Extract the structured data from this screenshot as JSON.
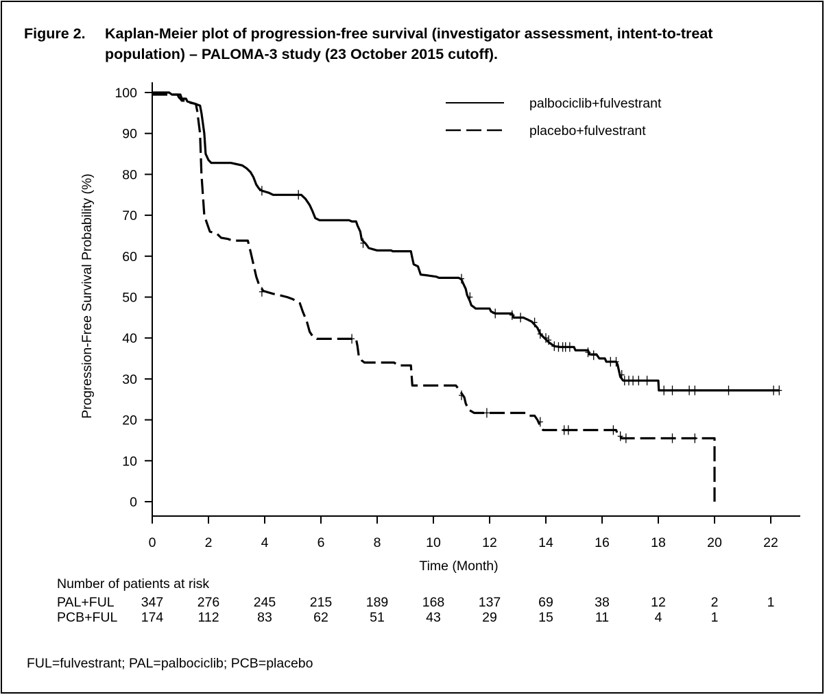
{
  "figure": {
    "label": "Figure 2.",
    "title_line1": "Kaplan-Meier plot of progression-free survival (investigator assessment, intent-to-treat",
    "title_line2": "population) – PALOMA-3 study (23 October 2015 cutoff)."
  },
  "risk_table": {
    "heading": "Number of patients at risk",
    "times": [
      0,
      2,
      4,
      6,
      8,
      10,
      12,
      14,
      16,
      18,
      20,
      22
    ],
    "rows": [
      {
        "label": "PAL+FUL",
        "counts": [
          "347",
          "276",
          "245",
          "215",
          "189",
          "168",
          "137",
          "69",
          "38",
          "12",
          "2",
          "1"
        ]
      },
      {
        "label": "PCB+FUL",
        "counts": [
          "174",
          "112",
          "83",
          "62",
          "51",
          "43",
          "29",
          "15",
          "11",
          "4",
          "1",
          ""
        ]
      }
    ]
  },
  "footnote": "FUL=fulvestrant; PAL=palbociclib; PCB=placebo",
  "chart_data": {
    "type": "line",
    "title": "",
    "xlabel": "Time (Month)",
    "ylabel": "Progression-Free Survival Probability (%)",
    "xlim": [
      0,
      22.5
    ],
    "ylim": [
      0,
      100
    ],
    "xticks": [
      "0",
      "2",
      "4",
      "6",
      "8",
      "10",
      "12",
      "14",
      "16",
      "18",
      "20",
      "22"
    ],
    "yticks": [
      "0",
      "10",
      "20",
      "30",
      "40",
      "50",
      "60",
      "70",
      "80",
      "90",
      "100"
    ],
    "grid": false,
    "legend_position": "top-right",
    "line_color": "#000000",
    "series": [
      {
        "name": "palbociclib+fulvestrant",
        "style": "solid",
        "points": [
          [
            0,
            100
          ],
          [
            0.6,
            100
          ],
          [
            0.7,
            99.5
          ],
          [
            1.0,
            99.5
          ],
          [
            1.05,
            98.5
          ],
          [
            1.2,
            98.5
          ],
          [
            1.25,
            97.8
          ],
          [
            1.5,
            97.3
          ],
          [
            1.7,
            96.8
          ],
          [
            1.75,
            95
          ],
          [
            1.85,
            90
          ],
          [
            1.9,
            85
          ],
          [
            2.0,
            83.5
          ],
          [
            2.1,
            82.8
          ],
          [
            2.8,
            82.8
          ],
          [
            3.0,
            82.5
          ],
          [
            3.2,
            82.2
          ],
          [
            3.35,
            81.5
          ],
          [
            3.5,
            80.5
          ],
          [
            3.6,
            79.3
          ],
          [
            3.7,
            77.5
          ],
          [
            3.8,
            76.5
          ],
          [
            3.9,
            76
          ],
          [
            4.0,
            75.8
          ],
          [
            4.15,
            75.5
          ],
          [
            4.3,
            75
          ],
          [
            5.3,
            75
          ],
          [
            5.45,
            74
          ],
          [
            5.6,
            72.5
          ],
          [
            5.7,
            71
          ],
          [
            5.8,
            69.3
          ],
          [
            5.95,
            68.8
          ],
          [
            7.0,
            68.8
          ],
          [
            7.1,
            68.5
          ],
          [
            7.25,
            68.5
          ],
          [
            7.3,
            67.5
          ],
          [
            7.4,
            66
          ],
          [
            7.45,
            64
          ],
          [
            7.6,
            63
          ],
          [
            7.7,
            62
          ],
          [
            7.85,
            61.7
          ],
          [
            8.0,
            61.4
          ],
          [
            8.5,
            61.4
          ],
          [
            8.55,
            61.2
          ],
          [
            9.2,
            61.2
          ],
          [
            9.25,
            59.5
          ],
          [
            9.3,
            58
          ],
          [
            9.45,
            57.5
          ],
          [
            9.55,
            55.5
          ],
          [
            9.8,
            55.3
          ],
          [
            10.1,
            55
          ],
          [
            10.2,
            54.7
          ],
          [
            10.9,
            54.7
          ],
          [
            11.0,
            54.3
          ],
          [
            11.05,
            53.5
          ],
          [
            11.15,
            52
          ],
          [
            11.2,
            50.5
          ],
          [
            11.3,
            49
          ],
          [
            11.35,
            48
          ],
          [
            11.45,
            47.5
          ],
          [
            11.5,
            47.2
          ],
          [
            12.0,
            47.2
          ],
          [
            12.05,
            46.5
          ],
          [
            12.2,
            46
          ],
          [
            12.8,
            46
          ],
          [
            12.85,
            45
          ],
          [
            13.2,
            45
          ],
          [
            13.35,
            44.5
          ],
          [
            13.5,
            44
          ],
          [
            13.7,
            42.5
          ],
          [
            13.8,
            41
          ],
          [
            13.95,
            40
          ],
          [
            14.1,
            39
          ],
          [
            14.2,
            38.5
          ],
          [
            14.3,
            38
          ],
          [
            14.5,
            37.8
          ],
          [
            15.0,
            37.8
          ],
          [
            15.05,
            37
          ],
          [
            15.5,
            37
          ],
          [
            15.55,
            36
          ],
          [
            15.8,
            36
          ],
          [
            15.9,
            35
          ],
          [
            16.1,
            35
          ],
          [
            16.15,
            34.2
          ],
          [
            16.5,
            34.2
          ],
          [
            16.55,
            33.5
          ],
          [
            16.6,
            32
          ],
          [
            16.65,
            30.5
          ],
          [
            16.75,
            29.6
          ],
          [
            18.0,
            29.6
          ],
          [
            18.02,
            27.2
          ],
          [
            22.3,
            27.2
          ]
        ],
        "censored": [
          [
            3.9,
            76
          ],
          [
            5.2,
            75
          ],
          [
            7.5,
            63.2
          ],
          [
            11.0,
            54.5
          ],
          [
            11.3,
            50
          ],
          [
            12.2,
            46
          ],
          [
            12.8,
            45.6
          ],
          [
            13.1,
            45
          ],
          [
            13.6,
            43.8
          ],
          [
            13.8,
            41
          ],
          [
            14.0,
            40
          ],
          [
            14.1,
            39.5
          ],
          [
            14.3,
            38
          ],
          [
            14.45,
            37.8
          ],
          [
            14.6,
            37.8
          ],
          [
            14.7,
            37.8
          ],
          [
            14.85,
            37.8
          ],
          [
            15.5,
            36.5
          ],
          [
            15.7,
            35.8
          ],
          [
            16.3,
            34.2
          ],
          [
            16.5,
            34.2
          ],
          [
            16.7,
            31
          ],
          [
            16.8,
            29.6
          ],
          [
            16.95,
            29.6
          ],
          [
            17.1,
            29.6
          ],
          [
            17.3,
            29.6
          ],
          [
            17.6,
            29.6
          ],
          [
            18.2,
            27.2
          ],
          [
            18.5,
            27.2
          ],
          [
            19.1,
            27.2
          ],
          [
            19.3,
            27.2
          ],
          [
            20.5,
            27.2
          ],
          [
            22.1,
            27.2
          ],
          [
            22.3,
            27.2
          ]
        ]
      },
      {
        "name": "placebo+fulvestrant",
        "style": "dashed",
        "points": [
          [
            0,
            99.5
          ],
          [
            0.9,
            99.5
          ],
          [
            0.95,
            98.8
          ],
          [
            1.0,
            98.5
          ],
          [
            1.05,
            98
          ],
          [
            1.3,
            98
          ],
          [
            1.35,
            97.5
          ],
          [
            1.55,
            97.2
          ],
          [
            1.6,
            95.5
          ],
          [
            1.7,
            90
          ],
          [
            1.75,
            80
          ],
          [
            1.85,
            70
          ],
          [
            1.95,
            68
          ],
          [
            2.05,
            66
          ],
          [
            2.3,
            65.5
          ],
          [
            2.45,
            64.5
          ],
          [
            2.7,
            64.2
          ],
          [
            2.85,
            63.8
          ],
          [
            3.4,
            63.8
          ],
          [
            3.5,
            61
          ],
          [
            3.6,
            58
          ],
          [
            3.7,
            55
          ],
          [
            3.8,
            53
          ],
          [
            3.95,
            51.5
          ],
          [
            4.3,
            50.8
          ],
          [
            4.5,
            50.5
          ],
          [
            4.8,
            50
          ],
          [
            5.0,
            49.5
          ],
          [
            5.25,
            48.5
          ],
          [
            5.35,
            46.5
          ],
          [
            5.5,
            44
          ],
          [
            5.6,
            41.5
          ],
          [
            5.7,
            40.5
          ],
          [
            5.85,
            39.8
          ],
          [
            7.25,
            39.8
          ],
          [
            7.3,
            38
          ],
          [
            7.35,
            35.5
          ],
          [
            7.45,
            34.5
          ],
          [
            7.55,
            34
          ],
          [
            8.6,
            34
          ],
          [
            8.75,
            33.3
          ],
          [
            9.2,
            33.3
          ],
          [
            9.25,
            28.4
          ],
          [
            10.8,
            28.4
          ],
          [
            10.9,
            27.5
          ],
          [
            11.0,
            26.5
          ],
          [
            11.1,
            25.5
          ],
          [
            11.15,
            24
          ],
          [
            11.25,
            22.5
          ],
          [
            11.45,
            21.7
          ],
          [
            13.3,
            21.7
          ],
          [
            13.4,
            21
          ],
          [
            13.6,
            21
          ],
          [
            13.7,
            20
          ],
          [
            13.8,
            18.5
          ],
          [
            13.9,
            17.5
          ],
          [
            16.5,
            17.5
          ],
          [
            16.55,
            16.5
          ],
          [
            16.7,
            15.5
          ],
          [
            20.0,
            15.5
          ],
          [
            20.0,
            0
          ]
        ],
        "censored": [
          [
            3.9,
            51.3
          ],
          [
            7.1,
            39.8
          ],
          [
            11.0,
            26
          ],
          [
            11.9,
            21.7
          ],
          [
            13.8,
            19.5
          ],
          [
            14.65,
            17.5
          ],
          [
            14.8,
            17.5
          ],
          [
            16.4,
            17.5
          ],
          [
            16.65,
            16
          ],
          [
            16.85,
            15.5
          ],
          [
            18.5,
            15.5
          ],
          [
            19.3,
            15.5
          ]
        ]
      }
    ]
  }
}
